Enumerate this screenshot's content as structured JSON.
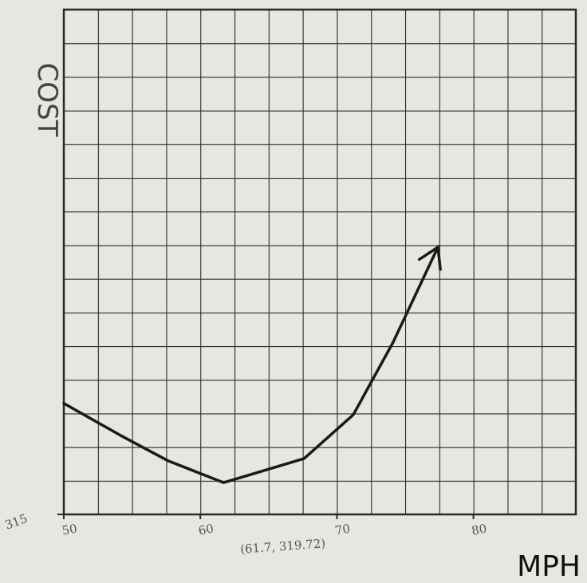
{
  "chart_data": {
    "type": "line",
    "y_label": "COST",
    "x_label": "MPH",
    "annotation": "(61.7, 319.72)",
    "x": [
      50,
      54.1,
      57.6,
      61.7,
      67.6,
      71.2,
      74.1,
      77.4
    ],
    "series": [
      {
        "color": "#1a1a1a",
        "values": [
          331.5,
          326.8,
          323,
          319.72,
          323.3,
          329.8,
          340.5,
          354.7
        ]
      }
    ],
    "xlim": [
      50,
      87.5
    ],
    "ylim": [
      315,
      390
    ],
    "xticks": [
      50,
      60,
      70,
      80
    ],
    "yticks": [
      315
    ]
  }
}
